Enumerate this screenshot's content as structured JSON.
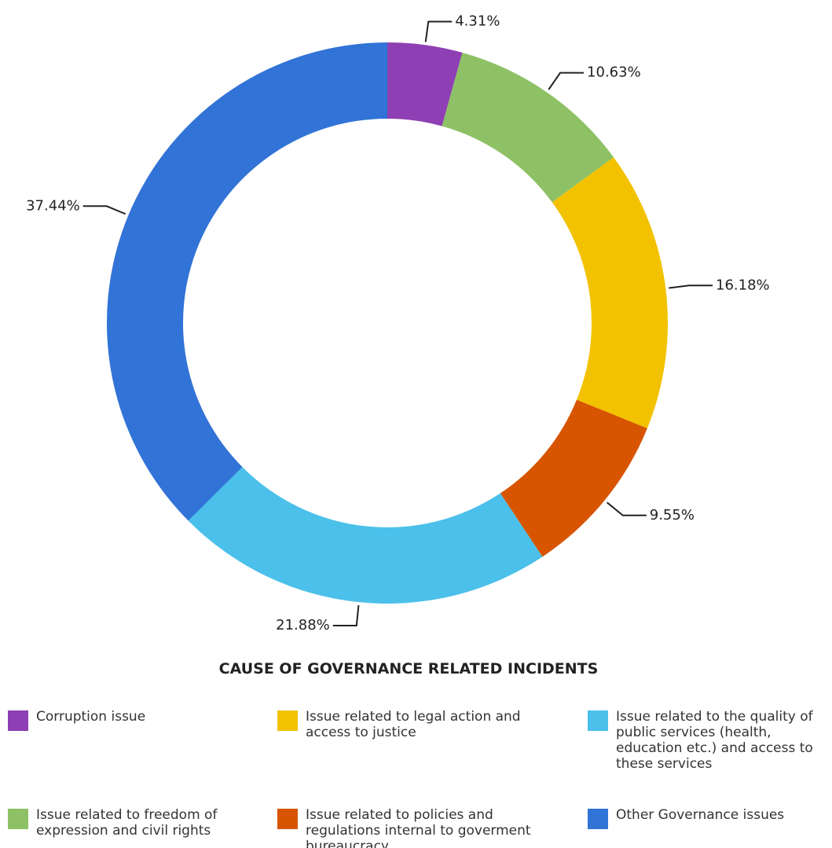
{
  "chart_data": {
    "type": "donut",
    "title": "CAUSE OF GOVERNANCE RELATED INCIDENTS",
    "categories": [
      "Corruption issue",
      "Issue related to freedom of expression and civil rights",
      "Issue related to legal action and access to justice",
      "Issue related to policies and regulations internal to goverment bureaucracy",
      "Issue related to the quality of public services (health, education etc.) and access to these services",
      "Other Governance issues"
    ],
    "values": [
      4.31,
      10.63,
      16.18,
      9.55,
      21.88,
      37.44
    ],
    "value_labels": [
      "4.31%",
      "10.63%",
      "16.18%",
      "9.55%",
      "21.88%",
      "37.44%"
    ],
    "colors": [
      "#8e3fb3",
      "#8ec165",
      "#f2c200",
      "#d75500",
      "#4bc0ea",
      "#3173d6"
    ],
    "legend": "bottom"
  }
}
